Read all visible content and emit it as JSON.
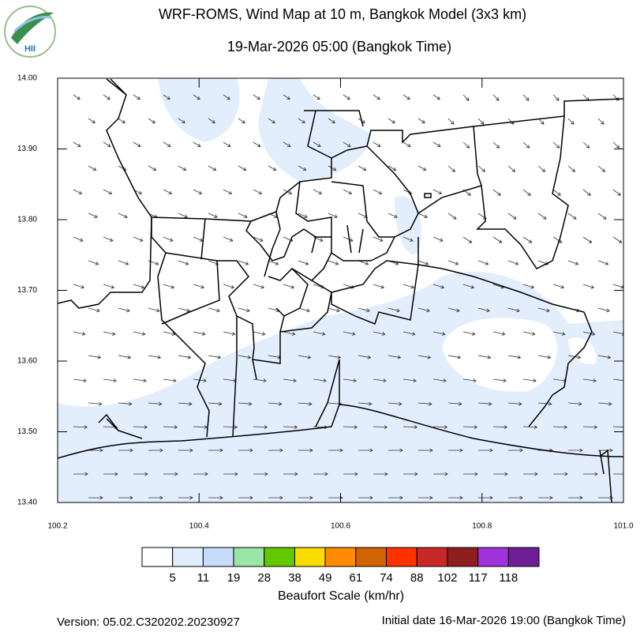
{
  "header": {
    "logo": "HII",
    "title": "WRF-ROMS, Wind Map at 10 m, Bangkok Model (3x3 km)",
    "subtitle": "19-Mar-2026 05:00 (Bangkok Time)"
  },
  "map": {
    "xlim": [
      100.2,
      101.0
    ],
    "ylim": [
      13.4,
      14.0
    ],
    "xticks": [
      100.2,
      100.4,
      100.6,
      100.8,
      {
        "value": 101,
        "label": "101.0"
      }
    ],
    "yticks": [
      {
        "value": 13.4,
        "label": "13.40"
      },
      {
        "value": 13.5,
        "label": "13.50"
      },
      {
        "value": 13.6,
        "label": "13.60"
      },
      {
        "value": 13.7,
        "label": "13.70"
      },
      {
        "value": 13.8,
        "label": "13.80"
      },
      {
        "value": 13.9,
        "label": "13.90"
      },
      {
        "value": 14,
        "label": "14.00"
      }
    ]
  },
  "colorbar": {
    "title": "Beaufort Scale (km/hr)",
    "colors": [
      "#ffffff",
      "#e3eefc",
      "#c6dcfa",
      "#9ae6a6",
      "#64c800",
      "#fadc00",
      "#ff8c00",
      "#d26400",
      "#ff3200",
      "#c82828",
      "#8c1e1e",
      "#a032dc",
      "#6e1e96"
    ],
    "levels": [
      5,
      11,
      19,
      28,
      38,
      49,
      61,
      74,
      88,
      102,
      117,
      118
    ]
  },
  "footer": {
    "version": "Version: 05.02.C320202.20230927",
    "initial_date": "Initial date 16-Mar-2026 19:00 (Bangkok Time)"
  }
}
